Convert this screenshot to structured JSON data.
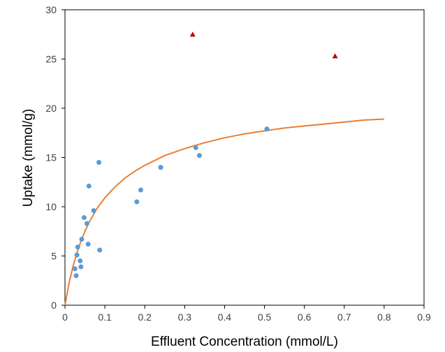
{
  "chart_data": {
    "type": "scatter",
    "title": "",
    "xlabel": "Effluent Concentration (mmol/L)",
    "ylabel": "Uptake (mmol/g)",
    "xlim": [
      0,
      0.9
    ],
    "ylim": [
      0,
      30
    ],
    "x_ticks": [
      0,
      0.1,
      0.2,
      0.3,
      0.4,
      0.5,
      0.6,
      0.7,
      0.8,
      0.9
    ],
    "x_tick_labels": [
      "0",
      "0.1",
      "0.2",
      "0.3",
      "0.4",
      "0.5",
      "0.6",
      "0.7",
      "0.8",
      "0.9"
    ],
    "y_ticks": [
      0,
      5,
      10,
      15,
      20,
      25,
      30
    ],
    "y_tick_labels": [
      "0",
      "5",
      "10",
      "15",
      "20",
      "25",
      "30"
    ],
    "grid": false,
    "legend": "none",
    "series": [
      {
        "marker": "circle",
        "color": "#5B9BD5",
        "points": [
          {
            "x": 0.025,
            "y": 3.7
          },
          {
            "x": 0.028,
            "y": 3.0
          },
          {
            "x": 0.03,
            "y": 5.1
          },
          {
            "x": 0.032,
            "y": 5.9
          },
          {
            "x": 0.038,
            "y": 4.5
          },
          {
            "x": 0.04,
            "y": 3.9
          },
          {
            "x": 0.042,
            "y": 6.7
          },
          {
            "x": 0.048,
            "y": 8.9
          },
          {
            "x": 0.055,
            "y": 8.3
          },
          {
            "x": 0.058,
            "y": 6.2
          },
          {
            "x": 0.06,
            "y": 12.1
          },
          {
            "x": 0.072,
            "y": 9.6
          },
          {
            "x": 0.085,
            "y": 14.5
          },
          {
            "x": 0.087,
            "y": 5.6
          },
          {
            "x": 0.18,
            "y": 10.5
          },
          {
            "x": 0.19,
            "y": 11.7
          },
          {
            "x": 0.24,
            "y": 14.0
          },
          {
            "x": 0.328,
            "y": 16.0
          },
          {
            "x": 0.337,
            "y": 15.2
          },
          {
            "x": 0.506,
            "y": 17.9
          }
        ]
      },
      {
        "marker": "triangle",
        "color": "#C00000",
        "points": [
          {
            "x": 0.32,
            "y": 27.5
          },
          {
            "x": 0.677,
            "y": 25.3
          }
        ]
      },
      {
        "type": "line",
        "color": "#ED7D31",
        "points": [
          {
            "x": 0.0,
            "y": 0.0
          },
          {
            "x": 0.01,
            "y": 2.2
          },
          {
            "x": 0.02,
            "y": 3.9
          },
          {
            "x": 0.03,
            "y": 5.3
          },
          {
            "x": 0.04,
            "y": 6.5
          },
          {
            "x": 0.05,
            "y": 7.5
          },
          {
            "x": 0.06,
            "y": 8.4
          },
          {
            "x": 0.08,
            "y": 9.8
          },
          {
            "x": 0.1,
            "y": 10.9
          },
          {
            "x": 0.125,
            "y": 12.0
          },
          {
            "x": 0.15,
            "y": 12.9
          },
          {
            "x": 0.175,
            "y": 13.6
          },
          {
            "x": 0.2,
            "y": 14.2
          },
          {
            "x": 0.25,
            "y": 15.2
          },
          {
            "x": 0.3,
            "y": 15.9
          },
          {
            "x": 0.35,
            "y": 16.5
          },
          {
            "x": 0.4,
            "y": 17.0
          },
          {
            "x": 0.45,
            "y": 17.4
          },
          {
            "x": 0.5,
            "y": 17.7
          },
          {
            "x": 0.55,
            "y": 18.0
          },
          {
            "x": 0.6,
            "y": 18.2
          },
          {
            "x": 0.65,
            "y": 18.4
          },
          {
            "x": 0.7,
            "y": 18.6
          },
          {
            "x": 0.75,
            "y": 18.8
          },
          {
            "x": 0.8,
            "y": 18.9
          }
        ]
      }
    ]
  }
}
